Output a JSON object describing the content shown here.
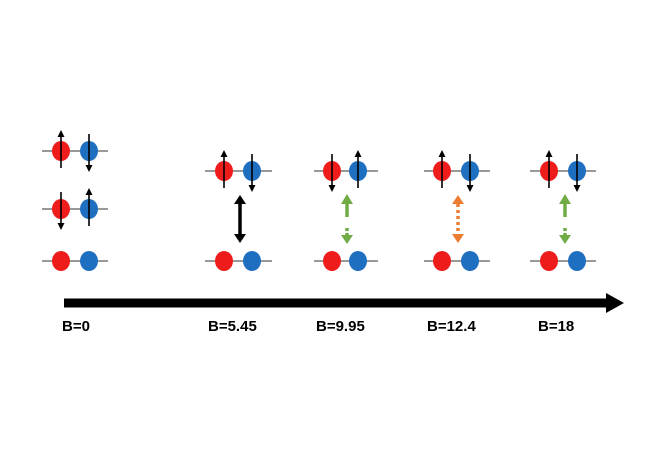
{
  "colors": {
    "red_particle": "#ef1c1c",
    "blue_particle": "#1f6fc0",
    "level_line": "#333333",
    "axis_arrow": "#000000",
    "black_arrow": "#000000",
    "green_arrow": "#6fac46",
    "orange_arrow": "#ed7d31"
  },
  "axis": {
    "arrow": "black-right-arrow"
  },
  "columns": [
    {
      "label": "B=0",
      "levels": [
        {
          "red_spin": "up",
          "blue_spin": "down"
        },
        {
          "red_spin": "down",
          "blue_spin": "up"
        },
        {
          "red_spin": "none",
          "blue_spin": "none"
        }
      ],
      "transition": null
    },
    {
      "label": "B=5.45",
      "levels": [
        {
          "red_spin": "up",
          "blue_spin": "down"
        },
        {
          "red_spin": "none",
          "blue_spin": "none"
        }
      ],
      "transition": {
        "color": "black",
        "style": "solid",
        "split": false
      }
    },
    {
      "label": "B=9.95",
      "levels": [
        {
          "red_spin": "down",
          "blue_spin": "up"
        },
        {
          "red_spin": "none",
          "blue_spin": "none"
        }
      ],
      "transition": {
        "color": "green",
        "style": "dashed",
        "split": true
      }
    },
    {
      "label": "B=12.4",
      "levels": [
        {
          "red_spin": "up",
          "blue_spin": "down"
        },
        {
          "red_spin": "none",
          "blue_spin": "none"
        }
      ],
      "transition": {
        "color": "orange",
        "style": "dotted",
        "split": false
      }
    },
    {
      "label": "B=18",
      "levels": [
        {
          "red_spin": "up",
          "blue_spin": "down"
        },
        {
          "red_spin": "none",
          "blue_spin": "none"
        }
      ],
      "transition": {
        "color": "green",
        "style": "dashed",
        "split": true
      }
    }
  ]
}
